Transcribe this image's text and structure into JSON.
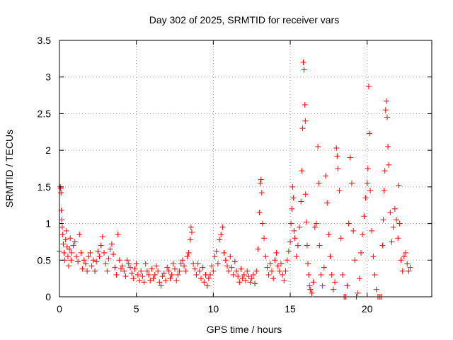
{
  "chart_data": {
    "type": "scatter",
    "title": "Day 302 of 2025, SRMTID for receiver vars",
    "xlabel": "GPS time / hours",
    "ylabel": "SRMTID / TECUs",
    "xlim": [
      0,
      24.2
    ],
    "ylim": [
      0,
      3.5
    ],
    "xticks": [
      0,
      5,
      10,
      15,
      20
    ],
    "yticks": [
      0,
      0.5,
      1,
      1.5,
      2,
      2.5,
      3,
      3.5
    ],
    "ytick_labels": [
      "0",
      "0.5",
      "1",
      "1.5",
      "2",
      "2.5",
      "3",
      "3.5"
    ],
    "grid": true,
    "marker": "+",
    "color": "#ff0000",
    "series": [
      {
        "name": "SRMTID",
        "points": [
          [
            0.0,
            0.62
          ],
          [
            0.05,
            1.5
          ],
          [
            0.08,
            1.48
          ],
          [
            0.1,
            1.42
          ],
          [
            0.12,
            1.18
          ],
          [
            0.15,
            1.05
          ],
          [
            0.18,
            0.95
          ],
          [
            0.2,
            0.85
          ],
          [
            0.25,
            0.72
          ],
          [
            0.3,
            0.6
          ],
          [
            0.35,
            0.5
          ],
          [
            0.4,
            0.78
          ],
          [
            0.45,
            0.9
          ],
          [
            0.5,
            0.68
          ],
          [
            0.55,
            0.55
          ],
          [
            0.6,
            0.42
          ],
          [
            0.65,
            0.65
          ],
          [
            0.7,
            0.8
          ],
          [
            0.75,
            0.5
          ],
          [
            0.8,
            0.6
          ],
          [
            0.9,
            0.7
          ],
          [
            1.0,
            0.75
          ],
          [
            1.1,
            0.55
          ],
          [
            1.2,
            0.48
          ],
          [
            1.3,
            0.85
          ],
          [
            1.4,
            0.6
          ],
          [
            1.5,
            0.38
          ],
          [
            1.6,
            0.5
          ],
          [
            1.7,
            0.45
          ],
          [
            1.8,
            0.35
          ],
          [
            1.9,
            0.55
          ],
          [
            2.0,
            0.6
          ],
          [
            2.1,
            0.42
          ],
          [
            2.2,
            0.5
          ],
          [
            2.3,
            0.35
          ],
          [
            2.4,
            0.48
          ],
          [
            2.5,
            0.62
          ],
          [
            2.6,
            0.55
          ],
          [
            2.7,
            0.7
          ],
          [
            2.8,
            0.82
          ],
          [
            2.9,
            0.6
          ],
          [
            3.0,
            0.45
          ],
          [
            3.1,
            0.35
          ],
          [
            3.2,
            0.52
          ],
          [
            3.3,
            0.65
          ],
          [
            3.4,
            0.72
          ],
          [
            3.5,
            0.58
          ],
          [
            3.6,
            0.4
          ],
          [
            3.7,
            0.3
          ],
          [
            3.8,
            0.85
          ],
          [
            3.9,
            0.5
          ],
          [
            4.0,
            0.38
          ],
          [
            4.1,
            0.42
          ],
          [
            4.2,
            0.35
          ],
          [
            4.3,
            0.28
          ],
          [
            4.4,
            0.5
          ],
          [
            4.5,
            0.45
          ],
          [
            4.6,
            0.4
          ],
          [
            4.7,
            0.32
          ],
          [
            4.8,
            0.25
          ],
          [
            4.9,
            0.38
          ],
          [
            5.0,
            0.45
          ],
          [
            5.1,
            0.3
          ],
          [
            5.2,
            0.22
          ],
          [
            5.3,
            0.35
          ],
          [
            5.4,
            0.28
          ],
          [
            5.5,
            0.2
          ],
          [
            5.6,
            0.45
          ],
          [
            5.7,
            0.35
          ],
          [
            5.8,
            0.3
          ],
          [
            5.9,
            0.22
          ],
          [
            6.0,
            0.38
          ],
          [
            6.1,
            0.25
          ],
          [
            6.2,
            0.3
          ],
          [
            6.3,
            0.42
          ],
          [
            6.4,
            0.35
          ],
          [
            6.5,
            0.2
          ],
          [
            6.6,
            0.15
          ],
          [
            6.7,
            0.28
          ],
          [
            6.8,
            0.32
          ],
          [
            6.9,
            0.22
          ],
          [
            7.0,
            0.4
          ],
          [
            7.1,
            0.35
          ],
          [
            7.2,
            0.25
          ],
          [
            7.3,
            0.3
          ],
          [
            7.4,
            0.45
          ],
          [
            7.5,
            0.38
          ],
          [
            7.6,
            0.22
          ],
          [
            7.7,
            0.3
          ],
          [
            7.8,
            0.35
          ],
          [
            7.9,
            0.45
          ],
          [
            8.0,
            0.5
          ],
          [
            8.1,
            0.42
          ],
          [
            8.2,
            0.35
          ],
          [
            8.3,
            0.55
          ],
          [
            8.4,
            0.6
          ],
          [
            8.5,
            0.78
          ],
          [
            8.55,
            0.95
          ],
          [
            8.6,
            0.88
          ],
          [
            8.7,
            0.45
          ],
          [
            8.8,
            0.38
          ],
          [
            8.9,
            0.3
          ],
          [
            9.0,
            0.45
          ],
          [
            9.1,
            0.35
          ],
          [
            9.2,
            0.25
          ],
          [
            9.3,
            0.4
          ],
          [
            9.4,
            0.2
          ],
          [
            9.5,
            0.3
          ],
          [
            9.6,
            0.15
          ],
          [
            9.7,
            0.25
          ],
          [
            9.8,
            0.3
          ],
          [
            9.9,
            0.42
          ],
          [
            10.0,
            0.35
          ],
          [
            10.1,
            0.55
          ],
          [
            10.2,
            0.62
          ],
          [
            10.3,
            0.45
          ],
          [
            10.4,
            0.78
          ],
          [
            10.5,
            0.85
          ],
          [
            10.6,
            0.95
          ],
          [
            10.7,
            0.6
          ],
          [
            10.8,
            0.5
          ],
          [
            10.9,
            0.42
          ],
          [
            11.0,
            0.35
          ],
          [
            11.1,
            0.55
          ],
          [
            11.2,
            0.4
          ],
          [
            11.3,
            0.3
          ],
          [
            11.4,
            0.48
          ],
          [
            11.5,
            0.35
          ],
          [
            11.6,
            0.28
          ],
          [
            11.7,
            0.2
          ],
          [
            11.8,
            0.38
          ],
          [
            11.9,
            0.25
          ],
          [
            12.0,
            0.3
          ],
          [
            12.1,
            0.22
          ],
          [
            12.2,
            0.35
          ],
          [
            12.3,
            0.28
          ],
          [
            12.4,
            0.2
          ],
          [
            12.5,
            0.25
          ],
          [
            12.6,
            0.3
          ],
          [
            12.7,
            0.18
          ],
          [
            12.8,
            0.35
          ],
          [
            12.9,
            0.65
          ],
          [
            13.0,
            1.15
          ],
          [
            13.05,
            1.55
          ],
          [
            13.1,
            1.6
          ],
          [
            13.15,
            1.42
          ],
          [
            13.2,
            1.0
          ],
          [
            13.3,
            0.8
          ],
          [
            13.4,
            0.55
          ],
          [
            13.5,
            0.4
          ],
          [
            13.6,
            0.3
          ],
          [
            13.7,
            0.45
          ],
          [
            13.8,
            0.35
          ],
          [
            13.9,
            0.25
          ],
          [
            14.0,
            0.5
          ],
          [
            14.1,
            0.6
          ],
          [
            14.2,
            0.42
          ],
          [
            14.3,
            0.35
          ],
          [
            14.4,
            0.45
          ],
          [
            14.5,
            0.3
          ],
          [
            14.6,
            0.22
          ],
          [
            14.7,
            0.35
          ],
          [
            14.8,
            0.5
          ],
          [
            14.9,
            0.62
          ],
          [
            15.0,
            0.75
          ],
          [
            15.05,
            1.0
          ],
          [
            15.1,
            1.2
          ],
          [
            15.15,
            1.5
          ],
          [
            15.2,
            1.35
          ],
          [
            15.25,
            0.9
          ],
          [
            15.3,
            0.8
          ],
          [
            15.4,
            0.55
          ],
          [
            15.5,
            0.7
          ],
          [
            15.6,
            0.95
          ],
          [
            15.7,
            1.3
          ],
          [
            15.75,
            1.72
          ],
          [
            15.8,
            2.3
          ],
          [
            15.85,
            3.2
          ],
          [
            15.9,
            3.1
          ],
          [
            15.95,
            2.62
          ],
          [
            15.98,
            2.4
          ],
          [
            16.0,
            1.4
          ],
          [
            16.05,
            1.02
          ],
          [
            16.1,
            0.7
          ],
          [
            16.15,
            0.45
          ],
          [
            16.2,
            0.3
          ],
          [
            16.25,
            0.15
          ],
          [
            16.3,
            0.1
          ],
          [
            16.4,
            0.05
          ],
          [
            16.5,
            0.2
          ],
          [
            16.6,
            0.95
          ],
          [
            16.7,
            1.0
          ],
          [
            16.8,
            2.05
          ],
          [
            16.85,
            1.55
          ],
          [
            16.9,
            0.7
          ],
          [
            17.0,
            0.3
          ],
          [
            17.1,
            0.15
          ],
          [
            17.2,
            0.4
          ],
          [
            17.3,
            1.65
          ],
          [
            17.4,
            1.28
          ],
          [
            17.5,
            0.85
          ],
          [
            17.6,
            0.55
          ],
          [
            17.7,
            0.3
          ],
          [
            17.8,
            0.1
          ],
          [
            17.9,
            0.2
          ],
          [
            18.0,
            2.03
          ],
          [
            18.05,
            1.92
          ],
          [
            18.1,
            1.75
          ],
          [
            18.2,
            1.45
          ],
          [
            18.3,
            0.8
          ],
          [
            18.4,
            0.3
          ],
          [
            18.5,
            0.0
          ],
          [
            18.6,
            0.0
          ],
          [
            18.7,
            0.15
          ],
          [
            18.8,
            1.0
          ],
          [
            18.9,
            1.9
          ],
          [
            19.0,
            1.55
          ],
          [
            19.1,
            0.9
          ],
          [
            19.2,
            0.5
          ],
          [
            19.3,
            0.0
          ],
          [
            19.4,
            0.05
          ],
          [
            19.5,
            0.25
          ],
          [
            19.6,
            0.6
          ],
          [
            19.7,
            0.85
          ],
          [
            19.8,
            1.1
          ],
          [
            19.9,
            1.35
          ],
          [
            20.0,
            1.55
          ],
          [
            20.05,
            1.75
          ],
          [
            20.1,
            2.87
          ],
          [
            20.15,
            2.23
          ],
          [
            20.2,
            1.45
          ],
          [
            20.3,
            0.9
          ],
          [
            20.4,
            0.55
          ],
          [
            20.5,
            0.3
          ],
          [
            20.6,
            0.1
          ],
          [
            20.7,
            0.0
          ],
          [
            20.8,
            0.0
          ],
          [
            20.9,
            0.0
          ],
          [
            21.0,
            0.7
          ],
          [
            21.05,
            1.05
          ],
          [
            21.1,
            1.45
          ],
          [
            21.15,
            1.72
          ],
          [
            21.2,
            2.55
          ],
          [
            21.25,
            2.67
          ],
          [
            21.3,
            2.45
          ],
          [
            21.35,
            2.05
          ],
          [
            21.4,
            1.8
          ],
          [
            21.5,
            1.15
          ],
          [
            21.6,
            0.75
          ],
          [
            21.7,
            0.95
          ],
          [
            21.8,
            1.2
          ],
          [
            21.9,
            1.05
          ],
          [
            22.0,
            0.8
          ],
          [
            22.05,
            1.52
          ],
          [
            22.1,
            1.0
          ],
          [
            22.2,
            0.5
          ],
          [
            22.3,
            0.35
          ],
          [
            22.4,
            0.55
          ],
          [
            22.5,
            0.6
          ],
          [
            22.6,
            0.45
          ],
          [
            22.7,
            0.35
          ],
          [
            22.8,
            0.4
          ]
        ]
      }
    ]
  }
}
